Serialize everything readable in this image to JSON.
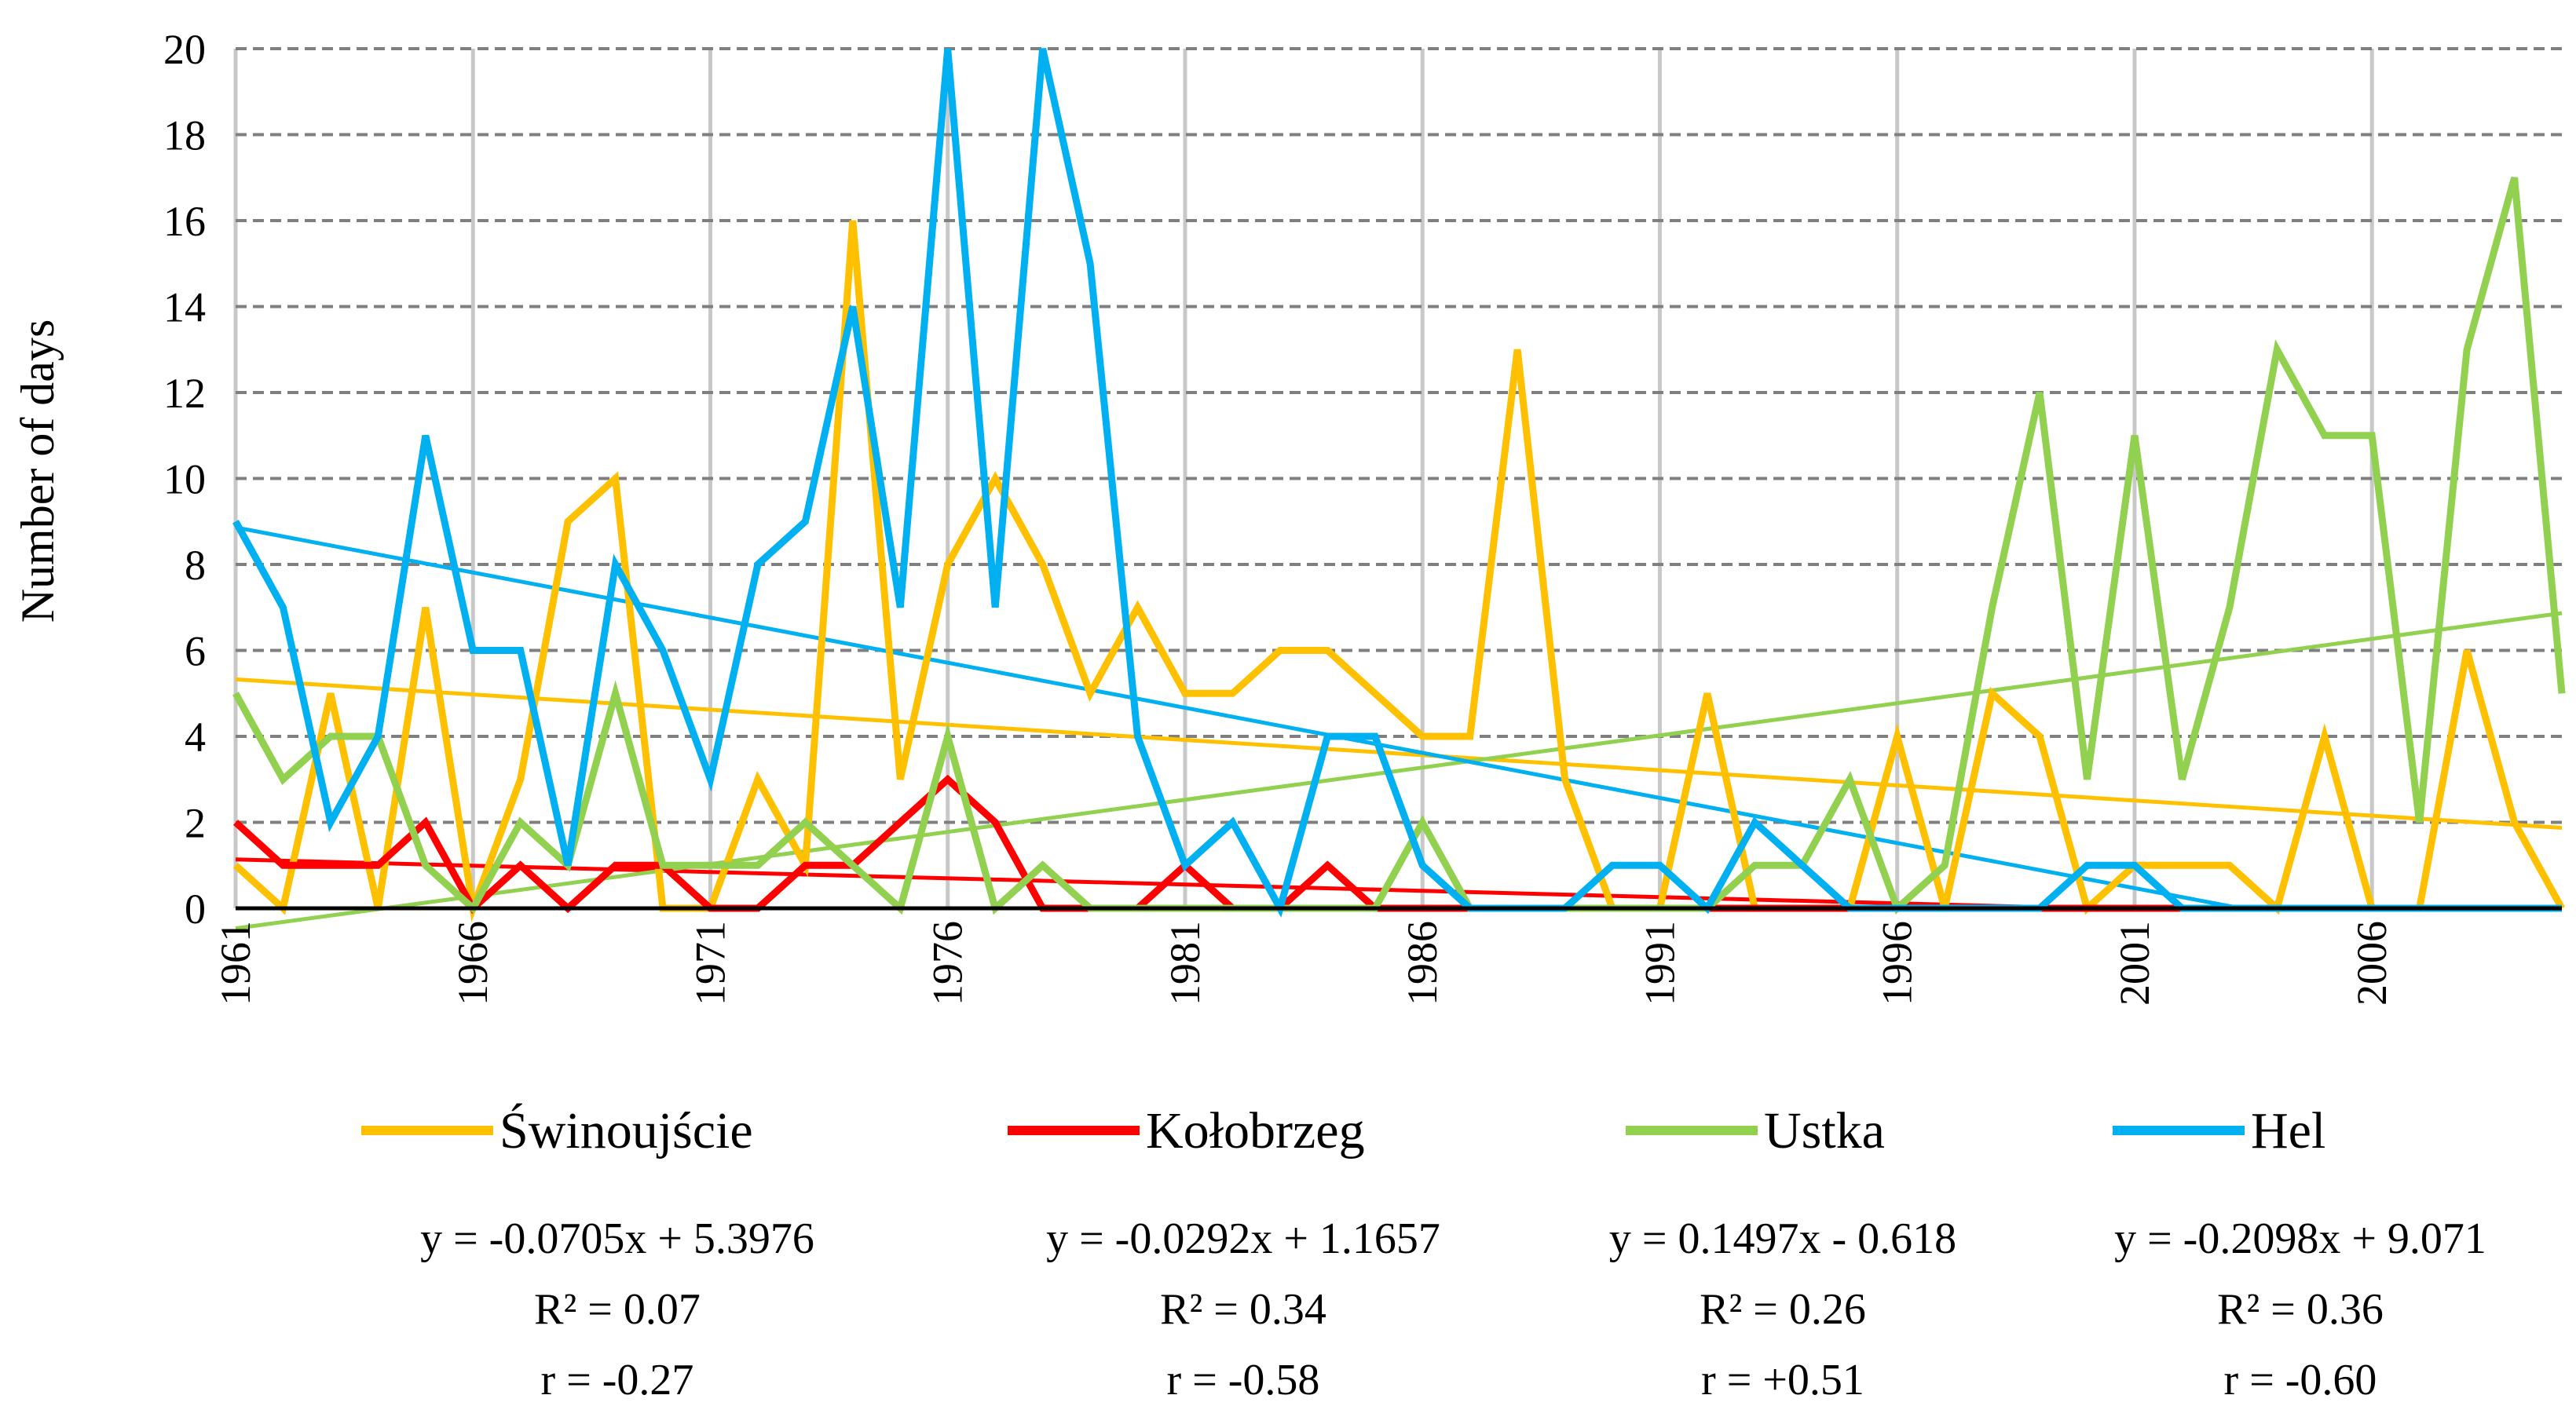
{
  "chart_data": {
    "type": "line",
    "title": "",
    "xlabel": "",
    "ylabel": "Number of days",
    "xlim": [
      1961,
      2010
    ],
    "ylim": [
      0,
      20
    ],
    "yticks": [
      "0",
      "2",
      "4",
      "6",
      "8",
      "10",
      "12",
      "14",
      "16",
      "18",
      "20"
    ],
    "xticks": [
      "1961",
      "1966",
      "1971",
      "1976",
      "1981",
      "1986",
      "1991",
      "1996",
      "2001",
      "2006"
    ],
    "grid": true,
    "legend_position": "bottom",
    "series": [
      {
        "name": "Świnoujście",
        "color": "#FFC000",
        "x": [
          1961,
          1962,
          1963,
          1964,
          1965,
          1966,
          1967,
          1968,
          1969,
          1970,
          1971,
          1972,
          1973,
          1974,
          1975,
          1976,
          1977,
          1978,
          1979,
          1980,
          1981,
          1982,
          1983,
          1984,
          1985,
          1986,
          1987,
          1988,
          1989,
          1990,
          1991,
          1992,
          1993,
          1994,
          1995,
          1996,
          1997,
          1998,
          1999,
          2000,
          2001,
          2002,
          2003,
          2004,
          2005,
          2006,
          2007,
          2008,
          2009,
          2010
        ],
        "values": [
          1,
          0,
          5,
          0,
          7,
          0,
          3,
          9,
          10,
          0,
          0,
          3,
          1,
          16,
          3,
          8,
          10,
          8,
          5,
          7,
          5,
          5,
          6,
          6,
          5,
          4,
          4,
          13,
          3,
          0,
          0,
          5,
          0,
          0,
          0,
          4,
          0,
          5,
          4,
          0,
          1,
          1,
          1,
          0,
          4,
          0,
          0,
          6,
          2,
          0
        ],
        "trend": {
          "slope": -0.0705,
          "intercept": 5.3976,
          "equation": "y = -0.0705x + 5.3976",
          "r2": "R² = 0.07",
          "r": "r = -0.27"
        }
      },
      {
        "name": "Kołobrzeg",
        "color": "#FF0000",
        "x": [
          1961,
          1962,
          1963,
          1964,
          1965,
          1966,
          1967,
          1968,
          1969,
          1970,
          1971,
          1972,
          1973,
          1974,
          1975,
          1976,
          1977,
          1978,
          1979,
          1980,
          1981,
          1982,
          1983,
          1984,
          1985,
          1986,
          1987,
          1988,
          1989,
          1990,
          1991,
          1992,
          1993,
          1994,
          1995,
          1996,
          1997,
          1998,
          1999,
          2000,
          2001,
          2002
        ],
        "values": [
          2,
          1,
          1,
          1,
          2,
          0,
          1,
          0,
          1,
          1,
          0,
          0,
          1,
          1,
          2,
          3,
          2,
          0,
          0,
          0,
          1,
          0,
          0,
          1,
          0,
          0,
          0,
          0,
          0,
          0,
          0,
          0,
          0,
          0,
          0,
          0,
          0,
          0,
          0,
          0,
          0,
          0
        ],
        "trend": {
          "slope": -0.0292,
          "intercept": 1.1657,
          "equation": "y = -0.0292x + 1.1657",
          "r2": "R² = 0.34",
          "r": "r = -0.58"
        }
      },
      {
        "name": "Ustka",
        "color": "#92D050",
        "x": [
          1961,
          1962,
          1963,
          1964,
          1965,
          1966,
          1967,
          1968,
          1969,
          1970,
          1971,
          1972,
          1973,
          1974,
          1975,
          1976,
          1977,
          1978,
          1979,
          1980,
          1981,
          1982,
          1983,
          1984,
          1985,
          1986,
          1987,
          1988,
          1989,
          1990,
          1991,
          1992,
          1993,
          1994,
          1995,
          1996,
          1997,
          1998,
          1999,
          2000,
          2001,
          2002,
          2003,
          2004,
          2005,
          2006,
          2007,
          2008,
          2009,
          2010
        ],
        "values": [
          5,
          3,
          4,
          4,
          1,
          0,
          2,
          1,
          5,
          1,
          1,
          1,
          2,
          1,
          0,
          4,
          0,
          1,
          0,
          0,
          0,
          0,
          0,
          0,
          0,
          2,
          0,
          0,
          0,
          0,
          0,
          0,
          1,
          1,
          3,
          0,
          1,
          7,
          12,
          3,
          11,
          3,
          7,
          13,
          11,
          11,
          2,
          13,
          17,
          5
        ],
        "trend": {
          "slope": 0.1497,
          "intercept": -0.618,
          "equation": "y = 0.1497x - 0.618",
          "r2": "R² = 0.26",
          "r": "r = +0.51"
        }
      },
      {
        "name": "Hel",
        "color": "#00B0F0",
        "x": [
          1961,
          1962,
          1963,
          1964,
          1965,
          1966,
          1967,
          1968,
          1969,
          1970,
          1971,
          1972,
          1973,
          1974,
          1975,
          1976,
          1977,
          1978,
          1979,
          1980,
          1981,
          1982,
          1983,
          1984,
          1985,
          1986,
          1987,
          1988,
          1989,
          1990,
          1991,
          1992,
          1993,
          1994,
          1995,
          1996,
          1997,
          1998,
          1999,
          2000,
          2001,
          2002,
          2003,
          2004,
          2005,
          2006,
          2007,
          2008,
          2009,
          2010
        ],
        "values": [
          9,
          7,
          2,
          4,
          11,
          6,
          6,
          1,
          8,
          6,
          3,
          8,
          9,
          14,
          7,
          20,
          7,
          20,
          15,
          4,
          1,
          2,
          0,
          4,
          4,
          1,
          0,
          0,
          0,
          1,
          1,
          0,
          2,
          1,
          0,
          0,
          0,
          0,
          0,
          1,
          1,
          0,
          0,
          0,
          0,
          0,
          0,
          0,
          0,
          0
        ],
        "trend": {
          "slope": -0.2098,
          "intercept": 9.071,
          "equation": "y = -0.2098x + 9.071",
          "r2": "R² = 0.36",
          "r": "r = -0.60"
        }
      }
    ]
  }
}
